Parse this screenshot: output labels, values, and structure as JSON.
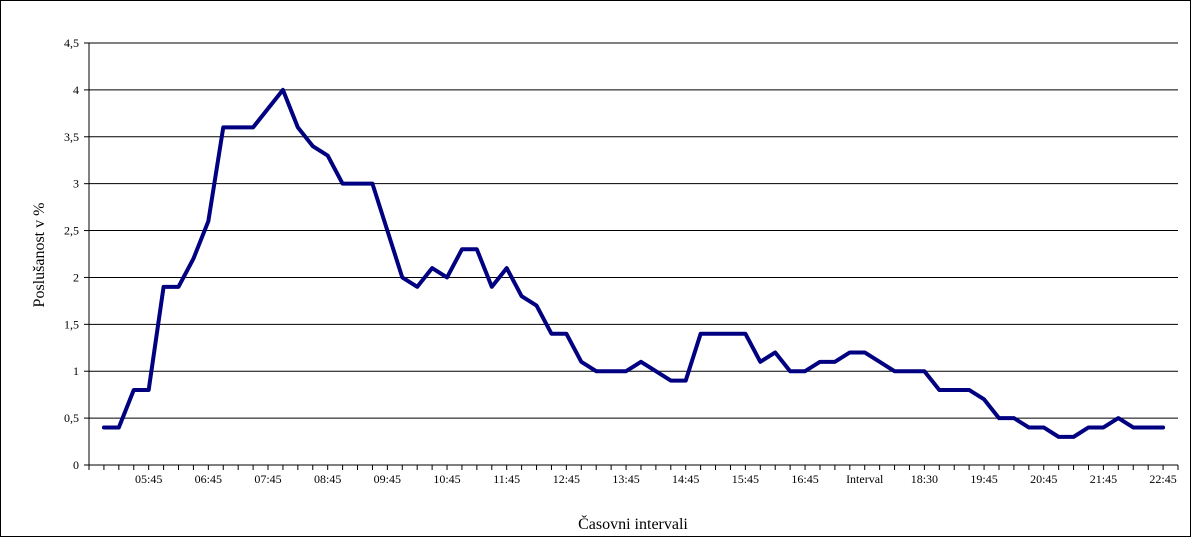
{
  "chart_data": {
    "type": "line",
    "title": "",
    "xlabel": "Časovni intervali",
    "ylabel": "Poslušanost v %",
    "ylim": [
      0,
      4.5
    ],
    "y_ticks": [
      0,
      0.5,
      1,
      1.5,
      2,
      2.5,
      3,
      3.5,
      4,
      4.5
    ],
    "y_tick_labels": [
      "0",
      "0,5",
      "1",
      "1,5",
      "2",
      "2,5",
      "3",
      "3,5",
      "4",
      "4,5"
    ],
    "x_tick_labels": [
      "05:45",
      "06:45",
      "07:45",
      "08:45",
      "09:45",
      "10:45",
      "11:45",
      "12:45",
      "13:45",
      "14:45",
      "15:45",
      "16:45",
      "Interval",
      "18:30",
      "19:45",
      "20:45",
      "21:45",
      "22:45"
    ],
    "grid": "horizontal",
    "legend": "none",
    "line_color": "#000080",
    "series": [
      {
        "values": [
          0.4,
          0.4,
          0.8,
          0.8,
          1.9,
          1.9,
          2.2,
          2.6,
          3.6,
          3.6,
          3.6,
          3.8,
          4.0,
          3.6,
          3.4,
          3.3,
          3.0,
          3.0,
          3.0,
          2.5,
          2.0,
          1.9,
          2.1,
          2.0,
          2.3,
          2.3,
          1.9,
          2.1,
          1.8,
          1.7,
          1.4,
          1.4,
          1.1,
          1.0,
          1.0,
          1.0,
          1.1,
          1.0,
          0.9,
          0.9,
          1.4,
          1.4,
          1.4,
          1.4,
          1.1,
          1.2,
          1.0,
          1.0,
          1.1,
          1.1,
          1.2,
          1.2,
          1.1,
          1.0,
          1.0,
          1.0,
          0.8,
          0.8,
          0.8,
          0.7,
          0.5,
          0.5,
          0.4,
          0.4,
          0.3,
          0.3,
          0.4,
          0.4,
          0.5,
          0.4,
          0.4,
          0.4
        ]
      }
    ]
  }
}
